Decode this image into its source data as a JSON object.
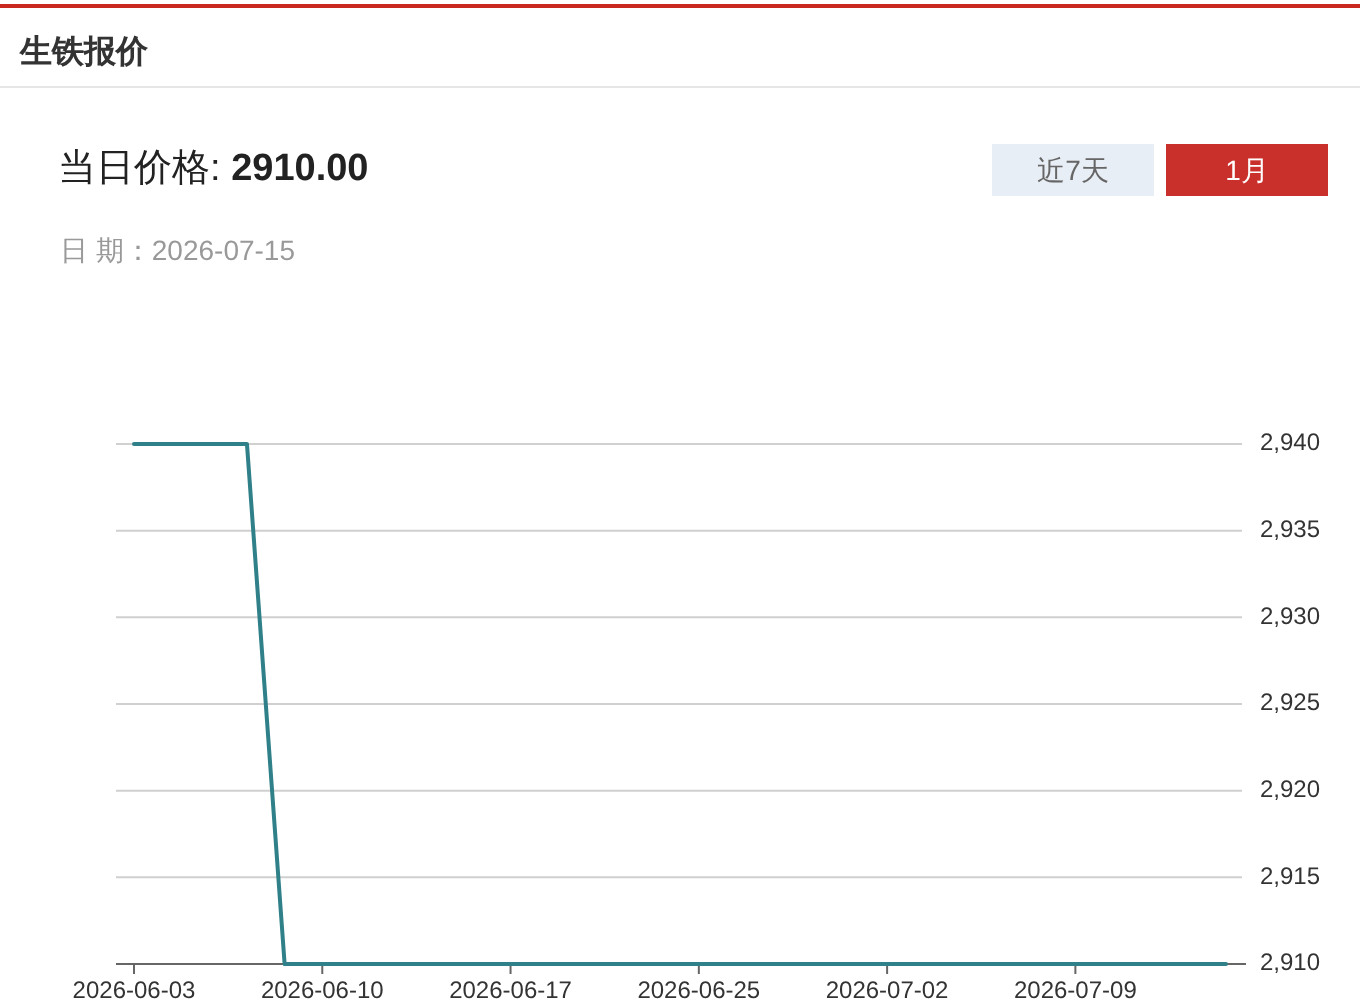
{
  "chart_data": {
    "type": "line",
    "title": "生铁报价",
    "subtitle": "当日价格: 2910.00",
    "annotations": [
      "日 期：2026-07-15",
      "近7天",
      "1月"
    ],
    "categories": [
      "2026-06-03",
      null,
      null,
      null,
      null,
      "2026-06-10",
      null,
      null,
      null,
      null,
      "2026-06-17",
      null,
      null,
      null,
      null,
      "2026-06-25",
      null,
      null,
      null,
      null,
      "2026-07-02",
      null,
      null,
      null,
      null,
      "2026-07-09",
      null,
      null,
      null,
      null
    ],
    "series": [
      {
        "color": "#2f8088",
        "values": [
          2940,
          2940,
          2940,
          2940,
          2910,
          2910,
          2910,
          2910,
          2910,
          2910,
          2910,
          2910,
          2910,
          2910,
          2910,
          2910,
          2910,
          2910,
          2910,
          2910,
          2910,
          2910,
          2910,
          2910,
          2910,
          2910,
          2910,
          2910,
          2910,
          2910
        ]
      }
    ],
    "ylim": [
      2910,
      2940
    ],
    "yticks": [
      {
        "value": 2910,
        "label": "2,910"
      },
      {
        "value": 2915,
        "label": "2,915"
      },
      {
        "value": 2920,
        "label": "2,920"
      },
      {
        "value": 2925,
        "label": "2,925"
      },
      {
        "value": 2930,
        "label": "2,930"
      },
      {
        "value": 2935,
        "label": "2,935"
      },
      {
        "value": 2940,
        "label": "2,940"
      }
    ],
    "grid": "y"
  }
}
